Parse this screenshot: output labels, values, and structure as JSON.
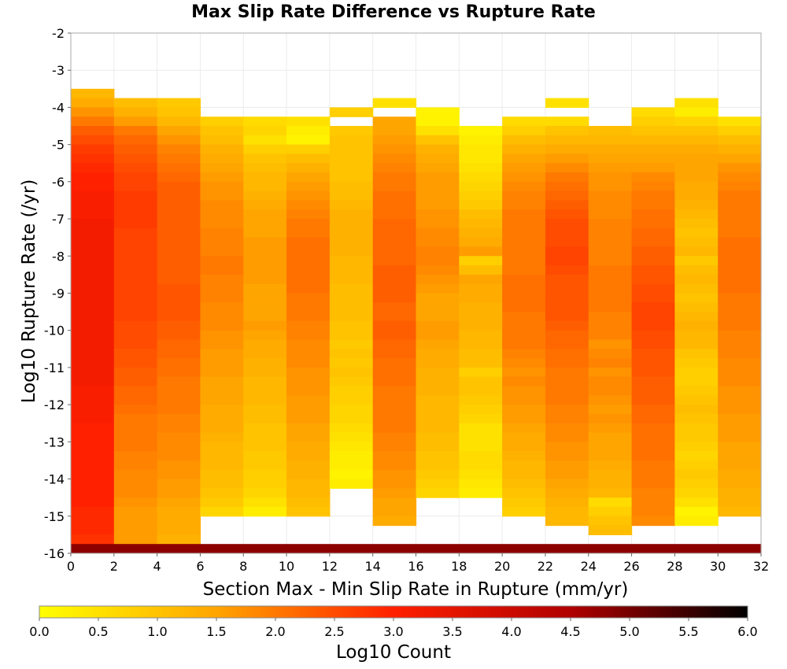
{
  "chart_data": {
    "type": "heatmap",
    "title": "Max Slip Rate Difference vs Rupture Rate",
    "xlabel": "Section Max - Min Slip Rate in Rupture (mm/yr)",
    "ylabel": "Log10 Rupture Rate (/yr)",
    "xlim": [
      0,
      32
    ],
    "ylim": [
      -16,
      -2
    ],
    "x_ticks": [
      "0",
      "2",
      "4",
      "6",
      "8",
      "10",
      "12",
      "14",
      "16",
      "18",
      "20",
      "22",
      "24",
      "26",
      "28",
      "30",
      "32"
    ],
    "y_ticks": [
      "-2",
      "-3",
      "-4",
      "-5",
      "-6",
      "-7",
      "-8",
      "-9",
      "-10",
      "-11",
      "-12",
      "-13",
      "-14",
      "-15",
      "-16"
    ],
    "x_bin_width": 2,
    "y_bin_height": 0.25,
    "bottom_row_value": 4.8,
    "grid": true,
    "colorbar": {
      "label": "Log10 Count",
      "min": 0.0,
      "max": 6.0,
      "ticks": [
        "0.0",
        "0.5",
        "1.0",
        "1.5",
        "2.0",
        "2.5",
        "3.0",
        "3.5",
        "4.0",
        "4.5",
        "5.0",
        "5.5",
        "6.0"
      ],
      "colors": [
        "#ffff00",
        "#ffa500",
        "#ff2000",
        "#b00000",
        "#000000"
      ]
    },
    "columns": [
      {
        "x_start": 0,
        "top": -3.5,
        "values": [
          1.2,
          1.4,
          1.7,
          2.0,
          2.3,
          2.5,
          2.7,
          2.8,
          2.9,
          3.0,
          3.0,
          3.1,
          3.1,
          3.1,
          3.2,
          3.2,
          3.2,
          3.2,
          3.2,
          3.2,
          3.2,
          3.2,
          3.2,
          3.2,
          3.2,
          3.2,
          3.2,
          3.2,
          3.2,
          3.2,
          3.2,
          3.2,
          3.1,
          3.1,
          3.1,
          3.1,
          3.0,
          3.0,
          3.0,
          3.0,
          3.0,
          3.0,
          3.0,
          3.0,
          3.0,
          2.9,
          2.9,
          2.9,
          2.8,
          2.8
        ]
      },
      {
        "x_start": 2,
        "top": -3.75,
        "values": [
          1.1,
          1.3,
          1.6,
          2.0,
          2.2,
          2.3,
          2.4,
          2.5,
          2.6,
          2.6,
          2.7,
          2.7,
          2.7,
          2.7,
          2.6,
          2.6,
          2.6,
          2.6,
          2.6,
          2.6,
          2.6,
          2.6,
          2.6,
          2.6,
          2.5,
          2.5,
          2.5,
          2.4,
          2.4,
          2.3,
          2.3,
          2.2,
          2.2,
          2.1,
          2.0,
          2.0,
          2.0,
          2.0,
          1.9,
          1.9,
          1.8,
          1.8,
          1.8,
          1.7,
          1.6,
          1.6,
          1.6,
          1.6,
          1.6
        ]
      },
      {
        "x_start": 4,
        "top": -3.75,
        "values": [
          0.9,
          1.0,
          1.2,
          1.5,
          1.7,
          1.9,
          2.0,
          2.1,
          2.2,
          2.3,
          2.3,
          2.3,
          2.3,
          2.3,
          2.3,
          2.3,
          2.3,
          2.3,
          2.3,
          2.3,
          2.4,
          2.4,
          2.4,
          2.4,
          2.3,
          2.3,
          2.2,
          2.2,
          2.1,
          2.1,
          2.0,
          2.0,
          2.0,
          2.0,
          1.9,
          1.9,
          1.8,
          1.8,
          1.8,
          1.7,
          1.7,
          1.6,
          1.6,
          1.5,
          1.4,
          1.4,
          1.4,
          1.3,
          1.3
        ]
      },
      {
        "x_start": 6,
        "top": -4.25,
        "values": [
          0.8,
          1.0,
          1.1,
          1.3,
          1.4,
          1.5,
          1.6,
          1.7,
          1.7,
          1.8,
          1.8,
          1.8,
          1.9,
          1.9,
          1.9,
          2.0,
          2.0,
          1.9,
          1.9,
          1.9,
          1.8,
          1.8,
          1.8,
          1.7,
          1.7,
          1.6,
          1.6,
          1.6,
          1.5,
          1.5,
          1.5,
          1.4,
          1.4,
          1.4,
          1.3,
          1.2,
          1.2,
          1.2,
          1.1,
          1.1,
          1.0,
          0.9,
          0.7
        ]
      },
      {
        "x_start": 8,
        "top": -4.25,
        "values": [
          0.6,
          0.7,
          0.5,
          0.8,
          1.0,
          1.1,
          1.2,
          1.2,
          1.3,
          1.4,
          1.5,
          1.5,
          1.5,
          1.6,
          1.6,
          1.6,
          1.6,
          1.6,
          1.5,
          1.5,
          1.5,
          1.5,
          1.6,
          1.5,
          1.4,
          1.4,
          1.3,
          1.3,
          1.2,
          1.2,
          1.2,
          1.1,
          1.1,
          1.0,
          1.0,
          1.0,
          0.9,
          0.9,
          0.8,
          0.8,
          0.7,
          0.5,
          0.3
        ]
      },
      {
        "x_start": 10,
        "top": -4.25,
        "values": [
          0.5,
          0.3,
          0.2,
          0.8,
          1.1,
          1.3,
          1.5,
          1.6,
          1.7,
          1.8,
          1.9,
          2.0,
          2.0,
          2.1,
          2.1,
          2.1,
          2.1,
          2.1,
          2.1,
          2.0,
          2.0,
          2.0,
          1.9,
          1.9,
          1.8,
          1.8,
          1.8,
          1.7,
          1.7,
          1.7,
          1.6,
          1.6,
          1.6,
          1.5,
          1.5,
          1.4,
          1.4,
          1.3,
          1.3,
          1.2,
          1.2,
          1.1,
          1.0
        ]
      },
      {
        "x_start": 12,
        "top": -4.0,
        "values": [
          0.8,
          null,
          0.9,
          1.0,
          1.0,
          1.0,
          1.0,
          1.0,
          1.1,
          1.1,
          1.2,
          1.3,
          1.3,
          1.3,
          1.3,
          1.3,
          1.2,
          1.2,
          1.2,
          1.1,
          1.1,
          1.1,
          1.1,
          1.0,
          1.0,
          0.9,
          1.0,
          0.9,
          1.0,
          0.9,
          0.8,
          0.8,
          0.7,
          0.7,
          0.6,
          0.5,
          0.4,
          0.3,
          0.3,
          0.2,
          0.3
        ]
      },
      {
        "x_start": 14,
        "top": -3.75,
        "values": [
          0.5,
          null,
          1.5,
          1.5,
          1.6,
          1.7,
          1.8,
          1.9,
          2.0,
          2.0,
          2.1,
          2.1,
          2.1,
          2.2,
          2.2,
          2.2,
          2.2,
          2.2,
          2.3,
          2.3,
          2.3,
          2.3,
          2.2,
          2.2,
          2.3,
          2.3,
          2.2,
          2.2,
          2.1,
          2.1,
          2.1,
          2.0,
          2.0,
          2.0,
          2.0,
          2.0,
          1.9,
          1.9,
          1.8,
          1.8,
          1.7,
          1.7,
          1.6,
          1.5,
          1.5,
          1.4
        ]
      },
      {
        "x_start": 16,
        "top": -4.0,
        "values": [
          0.2,
          0.2,
          0.5,
          1.0,
          1.3,
          1.4,
          1.5,
          1.6,
          1.6,
          1.6,
          1.6,
          1.7,
          1.7,
          1.8,
          1.8,
          1.9,
          1.9,
          1.8,
          1.7,
          1.6,
          1.5,
          1.5,
          1.5,
          1.6,
          1.6,
          1.5,
          1.4,
          1.4,
          1.3,
          1.3,
          1.3,
          1.2,
          1.2,
          1.2,
          1.2,
          1.1,
          1.1,
          1.0,
          1.0,
          0.9,
          0.8,
          0.7
        ]
      },
      {
        "x_start": 18,
        "top": -4.5,
        "values": [
          0.2,
          0.3,
          0.4,
          0.4,
          0.5,
          0.6,
          0.7,
          0.8,
          0.9,
          1.1,
          1.2,
          1.3,
          1.4,
          1.6,
          0.8,
          1.1,
          1.5,
          1.4,
          1.4,
          1.3,
          1.3,
          1.3,
          1.2,
          1.2,
          1.1,
          1.1,
          0.8,
          1.0,
          1.0,
          0.9,
          0.8,
          0.7,
          0.5,
          0.5,
          0.5,
          0.6,
          0.6,
          0.5,
          0.4,
          0.3
        ]
      },
      {
        "x_start": 20,
        "top": -4.25,
        "values": [
          0.6,
          0.8,
          1.1,
          1.3,
          1.5,
          1.6,
          1.7,
          1.8,
          1.9,
          1.9,
          2.0,
          2.0,
          2.0,
          2.0,
          2.0,
          2.0,
          2.0,
          2.1,
          2.1,
          2.1,
          2.1,
          2.0,
          2.0,
          2.0,
          2.0,
          1.9,
          1.8,
          1.7,
          1.8,
          1.7,
          1.7,
          1.6,
          1.6,
          1.5,
          1.4,
          1.4,
          1.3,
          1.2,
          1.2,
          1.1,
          1.0,
          0.9,
          0.8
        ]
      },
      {
        "x_start": 22,
        "top": -3.75,
        "values": [
          0.5,
          null,
          0.6,
          1.0,
          1.2,
          1.4,
          1.6,
          1.8,
          2.0,
          2.1,
          2.2,
          2.3,
          2.4,
          2.5,
          2.5,
          2.5,
          2.6,
          2.6,
          2.5,
          2.4,
          2.4,
          2.4,
          2.4,
          2.4,
          2.3,
          2.2,
          2.2,
          2.1,
          2.1,
          2.0,
          2.0,
          2.0,
          2.0,
          1.9,
          1.9,
          1.8,
          1.8,
          1.7,
          1.7,
          1.6,
          1.6,
          1.5,
          1.4,
          1.3,
          1.2,
          1.2
        ]
      },
      {
        "x_start": 24,
        "top": -4.5,
        "values": [
          1.1,
          1.2,
          1.4,
          1.5,
          1.6,
          1.7,
          1.7,
          1.8,
          1.8,
          1.8,
          1.9,
          1.9,
          1.9,
          1.9,
          1.9,
          2.0,
          2.0,
          2.0,
          2.0,
          2.0,
          1.9,
          1.9,
          1.9,
          1.7,
          1.8,
          1.9,
          1.7,
          1.8,
          1.8,
          1.7,
          1.6,
          1.7,
          1.6,
          1.5,
          1.5,
          1.5,
          1.4,
          1.3,
          1.3,
          1.2,
          0.6,
          0.8,
          1.0,
          1.1
        ]
      },
      {
        "x_start": 26,
        "top": -4.0,
        "values": [
          0.6,
          0.8,
          1.0,
          1.2,
          1.4,
          1.5,
          1.6,
          1.8,
          1.9,
          2.0,
          2.0,
          2.1,
          2.1,
          2.2,
          2.2,
          2.3,
          2.3,
          2.4,
          2.4,
          2.5,
          2.5,
          2.6,
          2.6,
          2.6,
          2.5,
          2.5,
          2.4,
          2.4,
          2.4,
          2.3,
          2.3,
          2.3,
          2.2,
          2.2,
          2.1,
          2.1,
          2.1,
          2.1,
          2.0,
          2.0,
          2.0,
          1.9,
          1.9,
          1.9,
          1.8
        ]
      },
      {
        "x_start": 28,
        "top": -3.75,
        "values": [
          0.5,
          0.3,
          0.7,
          1.0,
          1.2,
          1.4,
          1.5,
          1.5,
          1.5,
          1.4,
          1.4,
          1.3,
          1.2,
          1.1,
          1.0,
          1.1,
          1.2,
          0.9,
          1.1,
          1.2,
          1.1,
          1.0,
          1.1,
          1.2,
          1.3,
          1.2,
          1.2,
          1.0,
          0.9,
          0.8,
          0.8,
          0.9,
          1.0,
          1.1,
          1.0,
          0.9,
          0.9,
          0.8,
          0.7,
          0.8,
          0.9,
          0.8,
          0.7,
          0.5,
          0.2,
          0.3
        ]
      },
      {
        "x_start": 30,
        "top": -4.25,
        "values": [
          0.5,
          0.8,
          1.1,
          1.3,
          1.5,
          1.7,
          1.8,
          1.9,
          2.0,
          2.0,
          2.0,
          2.0,
          2.0,
          2.1,
          2.1,
          2.1,
          2.1,
          2.1,
          2.1,
          2.0,
          2.0,
          2.0,
          2.0,
          1.9,
          1.9,
          1.9,
          1.8,
          1.8,
          1.8,
          1.7,
          1.7,
          1.7,
          1.6,
          1.6,
          1.6,
          1.5,
          1.5,
          1.5,
          1.4,
          1.4,
          1.3,
          1.3,
          1.2
        ]
      }
    ]
  }
}
